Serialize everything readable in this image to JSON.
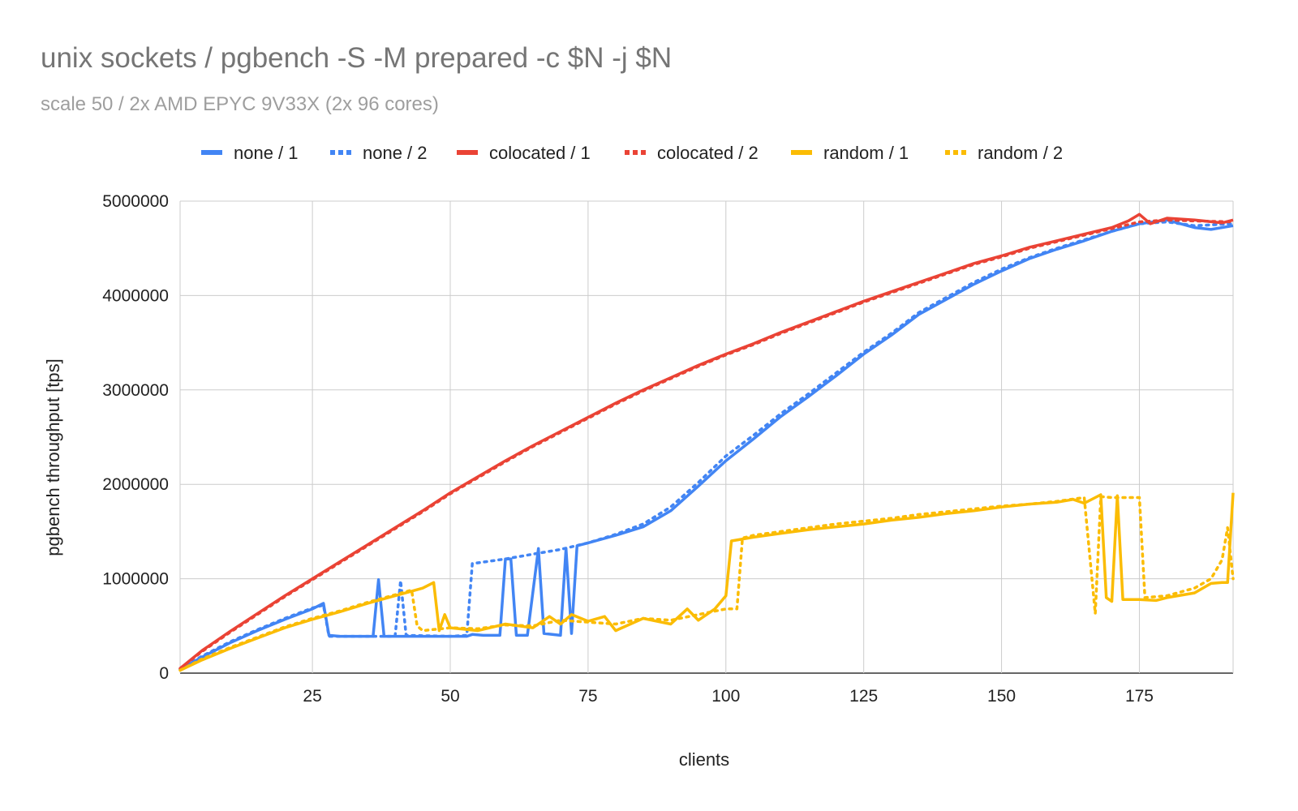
{
  "chart_data": {
    "type": "line",
    "title": "unix sockets / pgbench -S -M prepared -c $N -j $N",
    "subtitle": "scale 50 / 2x AMD EPYC 9V33X (2x 96 cores)",
    "xlabel": "clients",
    "ylabel": "pgbench throughput [tps]",
    "xlim": [
      1,
      192
    ],
    "ylim": [
      0,
      5000000
    ],
    "x_ticks": [
      25,
      50,
      75,
      100,
      125,
      150,
      175
    ],
    "y_ticks": [
      0,
      1000000,
      2000000,
      3000000,
      4000000,
      5000000
    ],
    "grid": true,
    "legend_position": "top",
    "series": [
      {
        "name": "none / 1",
        "color": "#4285F4",
        "style": "solid",
        "points": [
          [
            1,
            40000
          ],
          [
            5,
            170000
          ],
          [
            10,
            320000
          ],
          [
            15,
            450000
          ],
          [
            20,
            570000
          ],
          [
            25,
            680000
          ],
          [
            27,
            740000
          ],
          [
            28,
            400000
          ],
          [
            30,
            390000
          ],
          [
            36,
            390000
          ],
          [
            37,
            990000
          ],
          [
            38,
            390000
          ],
          [
            45,
            390000
          ],
          [
            53,
            390000
          ],
          [
            54,
            410000
          ],
          [
            56,
            400000
          ],
          [
            59,
            400000
          ],
          [
            60,
            1210000
          ],
          [
            61,
            1210000
          ],
          [
            62,
            400000
          ],
          [
            64,
            400000
          ],
          [
            66,
            1320000
          ],
          [
            67,
            420000
          ],
          [
            70,
            400000
          ],
          [
            71,
            1320000
          ],
          [
            72,
            420000
          ],
          [
            73,
            1350000
          ],
          [
            75,
            1380000
          ],
          [
            80,
            1460000
          ],
          [
            85,
            1550000
          ],
          [
            90,
            1720000
          ],
          [
            95,
            1980000
          ],
          [
            100,
            2250000
          ],
          [
            105,
            2480000
          ],
          [
            110,
            2720000
          ],
          [
            115,
            2930000
          ],
          [
            120,
            3150000
          ],
          [
            125,
            3380000
          ],
          [
            130,
            3580000
          ],
          [
            135,
            3800000
          ],
          [
            140,
            3960000
          ],
          [
            145,
            4120000
          ],
          [
            150,
            4260000
          ],
          [
            155,
            4390000
          ],
          [
            160,
            4490000
          ],
          [
            165,
            4580000
          ],
          [
            170,
            4680000
          ],
          [
            175,
            4760000
          ],
          [
            180,
            4800000
          ],
          [
            185,
            4720000
          ],
          [
            188,
            4700000
          ],
          [
            192,
            4740000
          ]
        ]
      },
      {
        "name": "none / 2",
        "color": "#4285F4",
        "style": "dotted",
        "points": [
          [
            1,
            40000
          ],
          [
            5,
            180000
          ],
          [
            10,
            330000
          ],
          [
            15,
            460000
          ],
          [
            20,
            580000
          ],
          [
            25,
            690000
          ],
          [
            27,
            720000
          ],
          [
            28,
            390000
          ],
          [
            35,
            390000
          ],
          [
            40,
            390000
          ],
          [
            41,
            980000
          ],
          [
            42,
            400000
          ],
          [
            50,
            390000
          ],
          [
            53,
            400000
          ],
          [
            54,
            1160000
          ],
          [
            60,
            1210000
          ],
          [
            65,
            1260000
          ],
          [
            70,
            1310000
          ],
          [
            75,
            1380000
          ],
          [
            80,
            1470000
          ],
          [
            85,
            1580000
          ],
          [
            90,
            1760000
          ],
          [
            95,
            2020000
          ],
          [
            100,
            2300000
          ],
          [
            105,
            2520000
          ],
          [
            110,
            2750000
          ],
          [
            115,
            2960000
          ],
          [
            120,
            3180000
          ],
          [
            125,
            3400000
          ],
          [
            130,
            3600000
          ],
          [
            135,
            3820000
          ],
          [
            140,
            3980000
          ],
          [
            145,
            4140000
          ],
          [
            150,
            4280000
          ],
          [
            155,
            4400000
          ],
          [
            160,
            4500000
          ],
          [
            165,
            4590000
          ],
          [
            170,
            4680000
          ],
          [
            175,
            4760000
          ],
          [
            180,
            4780000
          ],
          [
            185,
            4740000
          ],
          [
            192,
            4760000
          ]
        ]
      },
      {
        "name": "colocated / 1",
        "color": "#EA4335",
        "style": "solid",
        "points": [
          [
            1,
            50000
          ],
          [
            5,
            240000
          ],
          [
            10,
            440000
          ],
          [
            15,
            630000
          ],
          [
            20,
            820000
          ],
          [
            25,
            1000000
          ],
          [
            30,
            1180000
          ],
          [
            35,
            1360000
          ],
          [
            40,
            1540000
          ],
          [
            45,
            1720000
          ],
          [
            50,
            1910000
          ],
          [
            55,
            2080000
          ],
          [
            60,
            2250000
          ],
          [
            65,
            2410000
          ],
          [
            70,
            2560000
          ],
          [
            75,
            2710000
          ],
          [
            80,
            2860000
          ],
          [
            85,
            3000000
          ],
          [
            90,
            3130000
          ],
          [
            95,
            3260000
          ],
          [
            100,
            3380000
          ],
          [
            105,
            3490000
          ],
          [
            110,
            3610000
          ],
          [
            115,
            3720000
          ],
          [
            120,
            3830000
          ],
          [
            125,
            3940000
          ],
          [
            130,
            4040000
          ],
          [
            135,
            4140000
          ],
          [
            140,
            4240000
          ],
          [
            145,
            4340000
          ],
          [
            150,
            4420000
          ],
          [
            155,
            4510000
          ],
          [
            160,
            4580000
          ],
          [
            165,
            4650000
          ],
          [
            170,
            4720000
          ],
          [
            173,
            4790000
          ],
          [
            175,
            4860000
          ],
          [
            177,
            4760000
          ],
          [
            180,
            4820000
          ],
          [
            185,
            4800000
          ],
          [
            190,
            4770000
          ],
          [
            192,
            4800000
          ]
        ]
      },
      {
        "name": "colocated / 2",
        "color": "#EA4335",
        "style": "dotted",
        "points": [
          [
            1,
            50000
          ],
          [
            5,
            230000
          ],
          [
            10,
            430000
          ],
          [
            15,
            620000
          ],
          [
            20,
            810000
          ],
          [
            25,
            990000
          ],
          [
            30,
            1170000
          ],
          [
            35,
            1350000
          ],
          [
            40,
            1530000
          ],
          [
            45,
            1710000
          ],
          [
            50,
            1900000
          ],
          [
            55,
            2070000
          ],
          [
            60,
            2240000
          ],
          [
            65,
            2400000
          ],
          [
            70,
            2550000
          ],
          [
            75,
            2700000
          ],
          [
            80,
            2850000
          ],
          [
            85,
            2990000
          ],
          [
            90,
            3120000
          ],
          [
            95,
            3250000
          ],
          [
            100,
            3370000
          ],
          [
            105,
            3480000
          ],
          [
            110,
            3600000
          ],
          [
            115,
            3710000
          ],
          [
            120,
            3820000
          ],
          [
            125,
            3930000
          ],
          [
            130,
            4030000
          ],
          [
            135,
            4130000
          ],
          [
            140,
            4230000
          ],
          [
            145,
            4330000
          ],
          [
            150,
            4410000
          ],
          [
            155,
            4500000
          ],
          [
            160,
            4570000
          ],
          [
            165,
            4640000
          ],
          [
            170,
            4710000
          ],
          [
            175,
            4780000
          ],
          [
            180,
            4800000
          ],
          [
            185,
            4790000
          ],
          [
            192,
            4780000
          ]
        ]
      },
      {
        "name": "random / 1",
        "color": "#FBBC04",
        "style": "solid",
        "points": [
          [
            1,
            30000
          ],
          [
            5,
            140000
          ],
          [
            10,
            260000
          ],
          [
            15,
            370000
          ],
          [
            20,
            480000
          ],
          [
            25,
            570000
          ],
          [
            30,
            650000
          ],
          [
            35,
            740000
          ],
          [
            40,
            820000
          ],
          [
            45,
            900000
          ],
          [
            47,
            960000
          ],
          [
            48,
            450000
          ],
          [
            49,
            620000
          ],
          [
            50,
            480000
          ],
          [
            55,
            450000
          ],
          [
            60,
            520000
          ],
          [
            65,
            480000
          ],
          [
            68,
            600000
          ],
          [
            70,
            520000
          ],
          [
            72,
            620000
          ],
          [
            75,
            550000
          ],
          [
            78,
            600000
          ],
          [
            80,
            450000
          ],
          [
            85,
            580000
          ],
          [
            90,
            520000
          ],
          [
            93,
            680000
          ],
          [
            95,
            560000
          ],
          [
            98,
            680000
          ],
          [
            100,
            820000
          ],
          [
            101,
            1400000
          ],
          [
            105,
            1440000
          ],
          [
            110,
            1480000
          ],
          [
            115,
            1520000
          ],
          [
            120,
            1550000
          ],
          [
            125,
            1580000
          ],
          [
            130,
            1620000
          ],
          [
            135,
            1650000
          ],
          [
            140,
            1690000
          ],
          [
            145,
            1720000
          ],
          [
            150,
            1760000
          ],
          [
            155,
            1790000
          ],
          [
            160,
            1810000
          ],
          [
            163,
            1840000
          ],
          [
            165,
            1800000
          ],
          [
            168,
            1890000
          ],
          [
            169,
            800000
          ],
          [
            170,
            760000
          ],
          [
            171,
            1880000
          ],
          [
            172,
            780000
          ],
          [
            175,
            780000
          ],
          [
            178,
            770000
          ],
          [
            180,
            800000
          ],
          [
            185,
            850000
          ],
          [
            188,
            950000
          ],
          [
            190,
            960000
          ],
          [
            191,
            960000
          ],
          [
            192,
            1910000
          ]
        ]
      },
      {
        "name": "random / 2",
        "color": "#FBBC04",
        "style": "dotted",
        "points": [
          [
            1,
            30000
          ],
          [
            5,
            150000
          ],
          [
            10,
            270000
          ],
          [
            15,
            380000
          ],
          [
            20,
            490000
          ],
          [
            25,
            580000
          ],
          [
            30,
            660000
          ],
          [
            35,
            750000
          ],
          [
            40,
            830000
          ],
          [
            43,
            880000
          ],
          [
            44,
            500000
          ],
          [
            45,
            450000
          ],
          [
            50,
            480000
          ],
          [
            55,
            470000
          ],
          [
            60,
            510000
          ],
          [
            65,
            500000
          ],
          [
            70,
            560000
          ],
          [
            75,
            540000
          ],
          [
            80,
            520000
          ],
          [
            85,
            580000
          ],
          [
            90,
            560000
          ],
          [
            95,
            620000
          ],
          [
            100,
            680000
          ],
          [
            102,
            680000
          ],
          [
            103,
            1430000
          ],
          [
            105,
            1460000
          ],
          [
            110,
            1500000
          ],
          [
            115,
            1540000
          ],
          [
            120,
            1580000
          ],
          [
            125,
            1610000
          ],
          [
            130,
            1640000
          ],
          [
            135,
            1680000
          ],
          [
            140,
            1710000
          ],
          [
            145,
            1740000
          ],
          [
            150,
            1770000
          ],
          [
            155,
            1790000
          ],
          [
            160,
            1820000
          ],
          [
            165,
            1860000
          ],
          [
            167,
            630000
          ],
          [
            168,
            1870000
          ],
          [
            170,
            1860000
          ],
          [
            175,
            1860000
          ],
          [
            176,
            800000
          ],
          [
            180,
            820000
          ],
          [
            185,
            900000
          ],
          [
            188,
            1000000
          ],
          [
            190,
            1200000
          ],
          [
            191,
            1540000
          ],
          [
            192,
            1000000
          ]
        ]
      }
    ]
  }
}
